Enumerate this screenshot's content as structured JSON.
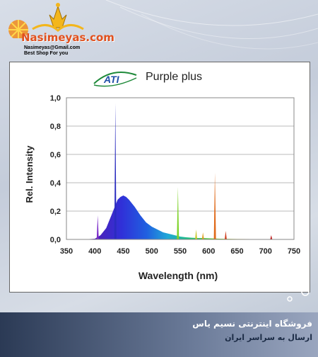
{
  "logo": {
    "name": "Nasimeyas.com",
    "email": "Nasimeyas@Gmail.com",
    "tagline": "Best Shop For you"
  },
  "brand_badge": "ATI",
  "footer": {
    "shop_name": "فروشگاه اینترنتی نسیم یاس",
    "shop_sub": "ارسال به سراسر ایران"
  },
  "colors": {
    "panel_border": "#666666",
    "peak_blue": "#2a2cbf",
    "peak_green": "#7fd32a",
    "peak_orange": "#e06a1a",
    "footer_dark": "#2b3a55",
    "logo_orange": "#e0501e"
  },
  "chart_data": {
    "type": "area",
    "title": "Purple plus",
    "xlabel": "Wavelength (nm)",
    "ylabel": "Rel. Intensity",
    "xlim": [
      350,
      750
    ],
    "ylim": [
      0,
      1.0
    ],
    "xticks": [
      "350",
      "400",
      "450",
      "500",
      "550",
      "600",
      "650",
      "700",
      "750"
    ],
    "yticks": [
      "0,0",
      "0,2",
      "0,4",
      "0,6",
      "0,8",
      "1,0"
    ],
    "grid": true,
    "series": [
      {
        "name": "",
        "x": [
          380,
          400,
          410,
          420,
          430,
          440,
          445,
          450,
          455,
          460,
          470,
          480,
          490,
          500,
          510,
          520,
          530,
          540,
          550,
          560,
          570,
          580,
          590,
          600,
          620,
          650,
          700,
          750
        ],
        "values": [
          0,
          0.005,
          0.03,
          0.08,
          0.18,
          0.28,
          0.3,
          0.31,
          0.3,
          0.28,
          0.23,
          0.17,
          0.12,
          0.09,
          0.07,
          0.05,
          0.04,
          0.03,
          0.02,
          0.015,
          0.012,
          0.01,
          0.01,
          0.008,
          0.005,
          0.003,
          0.002,
          0
        ]
      }
    ],
    "peaks": [
      {
        "x": 405,
        "y": 0.17,
        "color": "#7a2ac8"
      },
      {
        "x": 436,
        "y": 0.96,
        "color": "#2a2cbf"
      },
      {
        "x": 546,
        "y": 0.37,
        "color": "#7fd32a"
      },
      {
        "x": 578,
        "y": 0.07,
        "color": "#c8c82a"
      },
      {
        "x": 590,
        "y": 0.05,
        "color": "#e0a020"
      },
      {
        "x": 611,
        "y": 0.47,
        "color": "#e06a1a"
      },
      {
        "x": 630,
        "y": 0.06,
        "color": "#d04020"
      },
      {
        "x": 710,
        "y": 0.03,
        "color": "#c02020"
      }
    ]
  }
}
